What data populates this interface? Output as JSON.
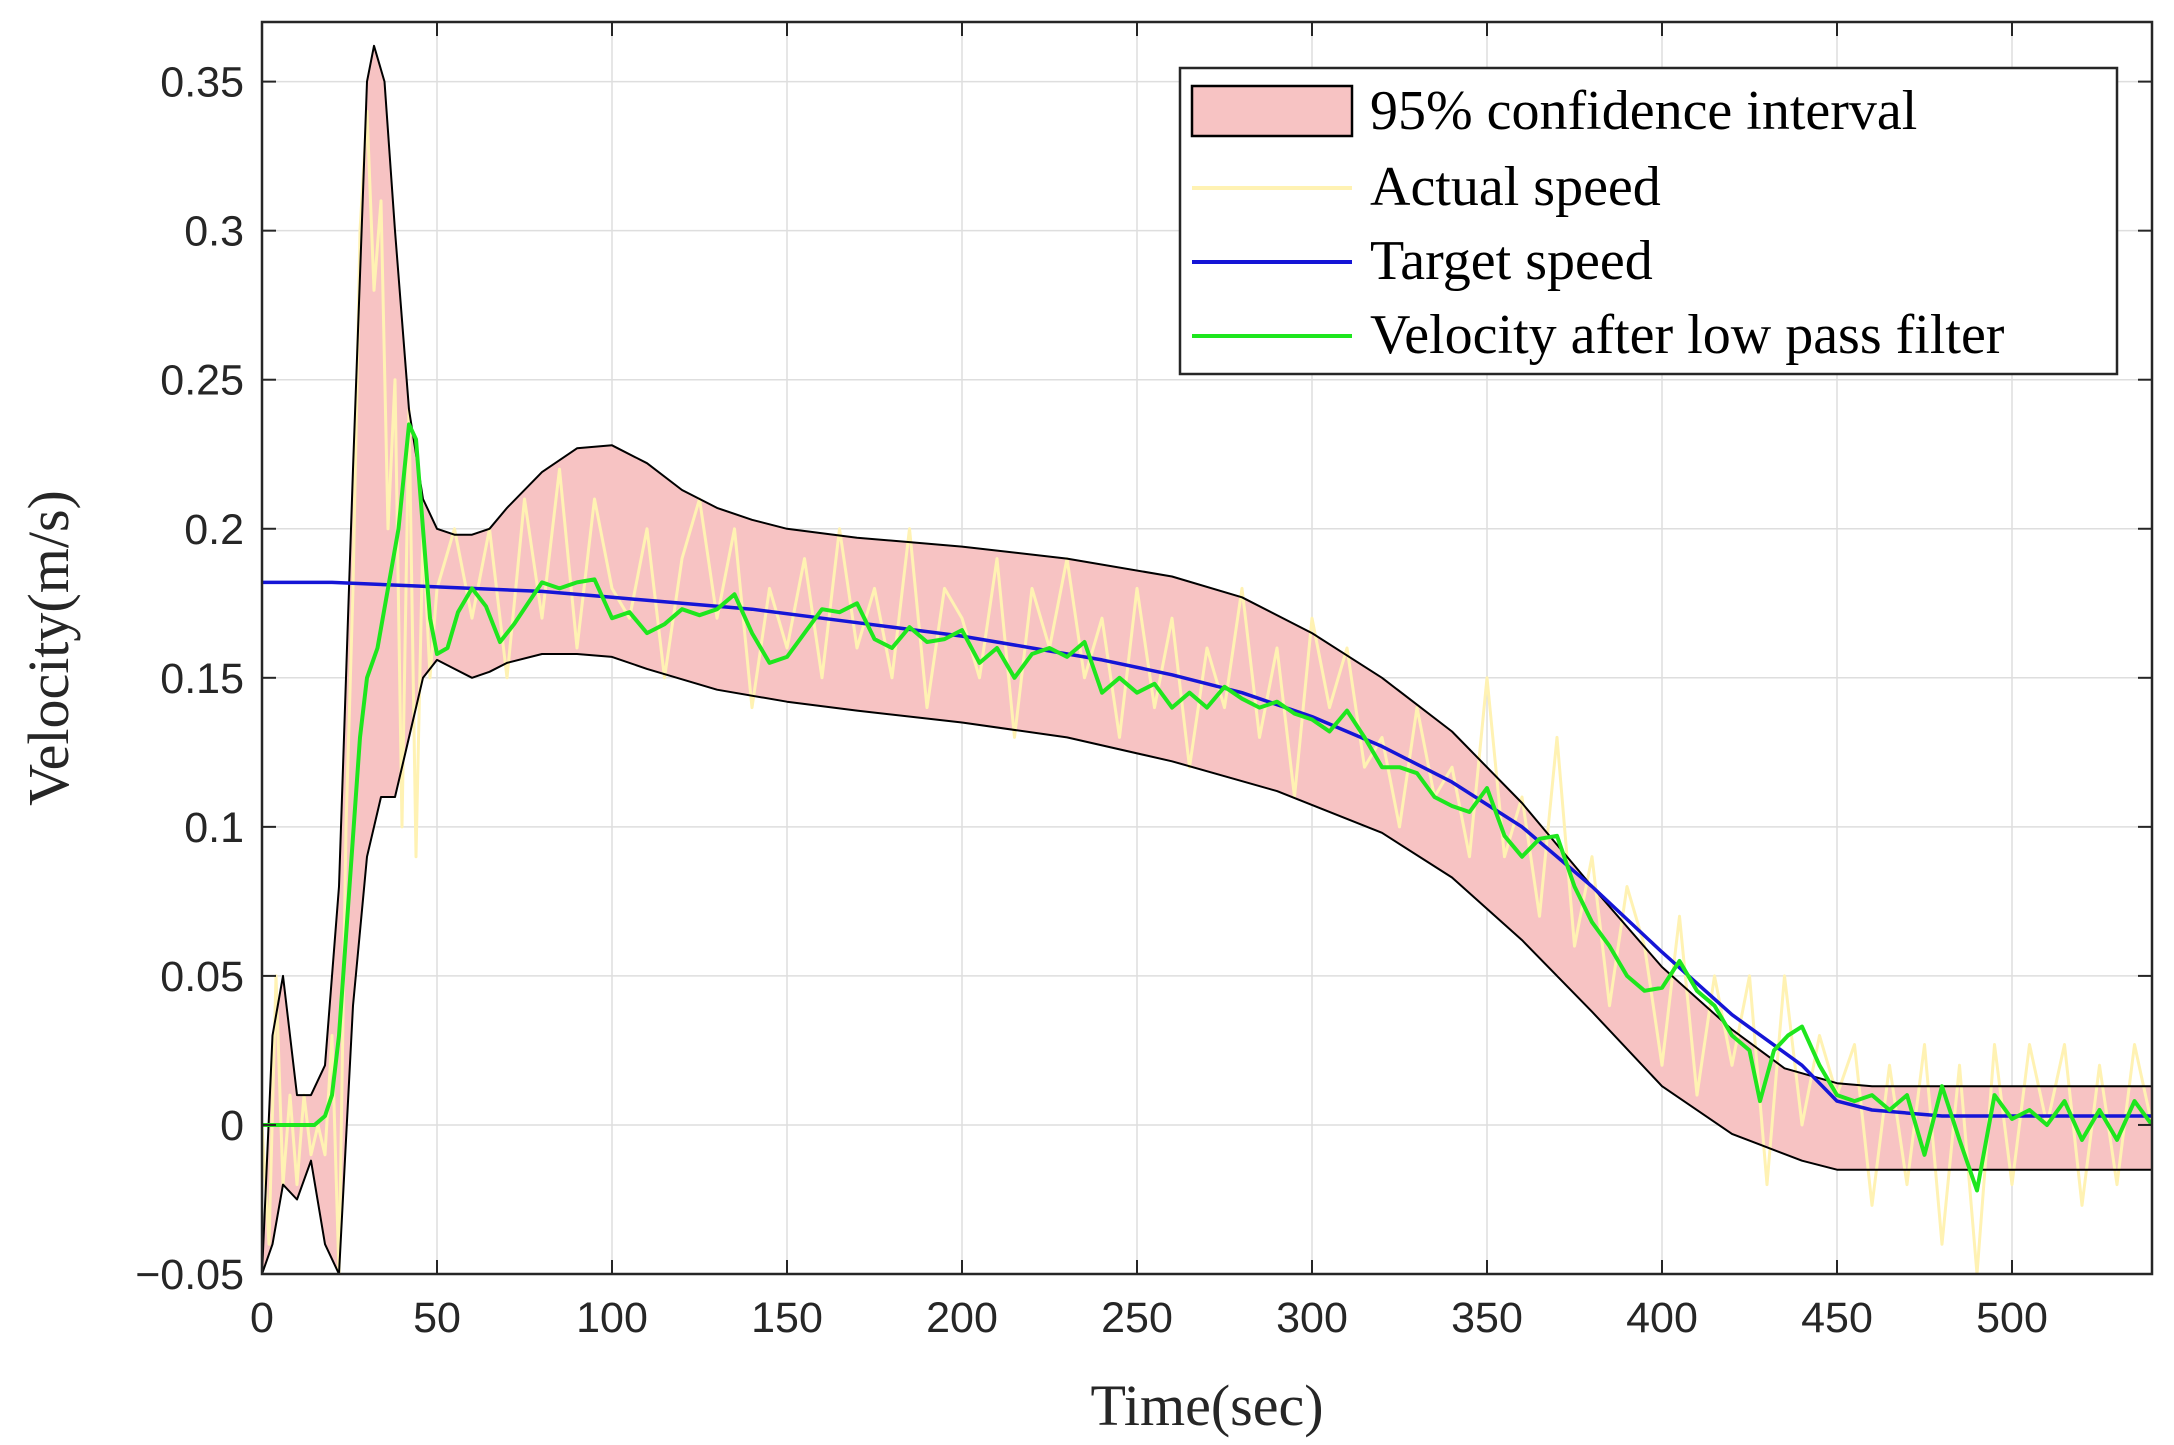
{
  "chart_data": {
    "type": "line",
    "title": "",
    "xlabel": "Time(sec)",
    "ylabel": "Velocity(m/s)",
    "xlim": [
      0,
      540
    ],
    "ylim": [
      -0.05,
      0.37
    ],
    "grid": true,
    "xticks": [
      0,
      50,
      100,
      150,
      200,
      250,
      300,
      350,
      400,
      450,
      500
    ],
    "yticks": [
      -0.05,
      0,
      0.05,
      0.1,
      0.15,
      0.2,
      0.25,
      0.3,
      0.35
    ],
    "xtick_labels": [
      "0",
      "50",
      "100",
      "150",
      "200",
      "250",
      "300",
      "350",
      "400",
      "450",
      "500"
    ],
    "ytick_labels": [
      "−0.05",
      "0",
      "0.05",
      "0.1",
      "0.15",
      "0.2",
      "0.25",
      "0.3",
      "0.35"
    ],
    "legend_position": "top-right",
    "legend": [
      {
        "label": "95% confidence interval",
        "kind": "patch",
        "color": "#f7c3c3",
        "edge": "#000000"
      },
      {
        "label": "Actual speed",
        "kind": "line",
        "color": "#fff2b3"
      },
      {
        "label": "Target speed",
        "kind": "line",
        "color": "#1515d6"
      },
      {
        "label": "Velocity after low pass filter",
        "kind": "line",
        "color": "#1ee61e"
      }
    ],
    "series": [
      {
        "name": "95% confidence interval upper",
        "x": [
          0,
          3,
          6,
          10,
          14,
          18,
          22,
          26,
          30,
          32,
          35,
          38,
          42,
          46,
          50,
          55,
          60,
          65,
          70,
          80,
          90,
          100,
          110,
          120,
          130,
          140,
          150,
          170,
          200,
          230,
          260,
          280,
          300,
          320,
          340,
          360,
          380,
          400,
          420,
          435,
          450,
          460,
          540
        ],
        "values": [
          -0.05,
          0.03,
          0.05,
          0.01,
          0.01,
          0.02,
          0.08,
          0.22,
          0.35,
          0.362,
          0.35,
          0.3,
          0.24,
          0.21,
          0.2,
          0.198,
          0.198,
          0.2,
          0.207,
          0.219,
          0.227,
          0.228,
          0.222,
          0.213,
          0.207,
          0.203,
          0.2,
          0.197,
          0.194,
          0.19,
          0.184,
          0.177,
          0.165,
          0.15,
          0.132,
          0.108,
          0.08,
          0.053,
          0.032,
          0.019,
          0.014,
          0.013,
          0.013
        ]
      },
      {
        "name": "95% confidence interval lower",
        "x": [
          0,
          3,
          6,
          10,
          14,
          18,
          22,
          26,
          30,
          34,
          38,
          42,
          46,
          50,
          55,
          60,
          65,
          70,
          80,
          90,
          100,
          110,
          130,
          150,
          170,
          200,
          230,
          260,
          290,
          320,
          340,
          360,
          380,
          400,
          420,
          440,
          450,
          460,
          540
        ],
        "values": [
          -0.05,
          -0.04,
          -0.02,
          -0.025,
          -0.012,
          -0.04,
          -0.05,
          0.04,
          0.09,
          0.11,
          0.11,
          0.13,
          0.15,
          0.156,
          0.153,
          0.15,
          0.152,
          0.155,
          0.158,
          0.158,
          0.157,
          0.153,
          0.146,
          0.142,
          0.139,
          0.135,
          0.13,
          0.122,
          0.112,
          0.098,
          0.083,
          0.062,
          0.038,
          0.013,
          -0.003,
          -0.012,
          -0.015,
          -0.015,
          -0.015
        ]
      },
      {
        "name": "Actual speed",
        "x": [
          0,
          2,
          4,
          6,
          8,
          10,
          12,
          14,
          16,
          18,
          20,
          22,
          24,
          26,
          28,
          30,
          32,
          34,
          36,
          38,
          40,
          42,
          44,
          46,
          48,
          50,
          55,
          60,
          65,
          70,
          75,
          80,
          85,
          90,
          95,
          100,
          105,
          110,
          115,
          120,
          125,
          130,
          135,
          140,
          145,
          150,
          155,
          160,
          165,
          170,
          175,
          180,
          185,
          190,
          195,
          200,
          205,
          210,
          215,
          220,
          225,
          230,
          235,
          240,
          245,
          250,
          255,
          260,
          265,
          270,
          275,
          280,
          285,
          290,
          295,
          300,
          305,
          310,
          315,
          320,
          325,
          330,
          335,
          340,
          345,
          350,
          355,
          360,
          365,
          370,
          375,
          380,
          385,
          390,
          395,
          400,
          405,
          410,
          415,
          420,
          425,
          430,
          435,
          440,
          445,
          450,
          455,
          460,
          465,
          470,
          475,
          480,
          485,
          490,
          495,
          500,
          505,
          510,
          515,
          520,
          525,
          530,
          535,
          540
        ],
        "values": [
          0.0,
          -0.04,
          0.05,
          -0.02,
          0.01,
          -0.02,
          0.01,
          -0.01,
          0.0,
          -0.01,
          0.03,
          -0.05,
          0.1,
          0.18,
          0.3,
          0.34,
          0.28,
          0.31,
          0.2,
          0.25,
          0.1,
          0.24,
          0.09,
          0.2,
          0.15,
          0.18,
          0.2,
          0.17,
          0.2,
          0.15,
          0.21,
          0.17,
          0.22,
          0.16,
          0.21,
          0.18,
          0.17,
          0.2,
          0.15,
          0.19,
          0.21,
          0.17,
          0.2,
          0.14,
          0.18,
          0.16,
          0.19,
          0.15,
          0.2,
          0.16,
          0.18,
          0.15,
          0.2,
          0.14,
          0.18,
          0.17,
          0.15,
          0.19,
          0.13,
          0.18,
          0.16,
          0.19,
          0.15,
          0.17,
          0.13,
          0.18,
          0.14,
          0.17,
          0.12,
          0.16,
          0.14,
          0.18,
          0.13,
          0.16,
          0.11,
          0.17,
          0.14,
          0.16,
          0.12,
          0.13,
          0.1,
          0.14,
          0.11,
          0.12,
          0.09,
          0.15,
          0.09,
          0.11,
          0.07,
          0.13,
          0.06,
          0.09,
          0.04,
          0.08,
          0.06,
          0.02,
          0.07,
          0.01,
          0.05,
          0.02,
          0.05,
          -0.02,
          0.05,
          0.0,
          0.03,
          0.01,
          0.027,
          -0.027,
          0.02,
          -0.02,
          0.027,
          -0.04,
          0.02,
          -0.05,
          0.027,
          -0.02,
          0.027,
          0.0,
          0.027,
          -0.027,
          0.02,
          -0.02,
          0.027,
          0.0
        ]
      },
      {
        "name": "Target speed",
        "x": [
          0,
          20,
          40,
          60,
          80,
          100,
          120,
          140,
          160,
          180,
          200,
          220,
          240,
          260,
          280,
          300,
          320,
          340,
          360,
          380,
          400,
          420,
          440,
          450,
          460,
          480,
          500,
          520,
          540
        ],
        "values": [
          0.182,
          0.182,
          0.181,
          0.18,
          0.179,
          0.177,
          0.175,
          0.173,
          0.17,
          0.167,
          0.164,
          0.16,
          0.156,
          0.151,
          0.145,
          0.137,
          0.127,
          0.115,
          0.1,
          0.08,
          0.058,
          0.037,
          0.02,
          0.008,
          0.005,
          0.003,
          0.003,
          0.003,
          0.003
        ]
      },
      {
        "name": "Velocity after low pass filter",
        "x": [
          0,
          5,
          10,
          15,
          18,
          20,
          22,
          25,
          28,
          30,
          33,
          36,
          39,
          42,
          44,
          46,
          48,
          50,
          53,
          56,
          60,
          64,
          68,
          72,
          76,
          80,
          85,
          90,
          95,
          100,
          105,
          110,
          115,
          120,
          125,
          130,
          135,
          140,
          145,
          150,
          155,
          160,
          165,
          170,
          175,
          180,
          185,
          190,
          195,
          200,
          205,
          210,
          215,
          220,
          225,
          230,
          235,
          240,
          245,
          250,
          255,
          260,
          265,
          270,
          275,
          280,
          285,
          290,
          295,
          300,
          305,
          310,
          315,
          320,
          325,
          330,
          335,
          340,
          345,
          350,
          355,
          360,
          365,
          370,
          375,
          380,
          385,
          390,
          395,
          400,
          405,
          410,
          415,
          420,
          425,
          428,
          432,
          436,
          440,
          445,
          450,
          455,
          460,
          465,
          470,
          475,
          480,
          485,
          490,
          495,
          500,
          505,
          510,
          515,
          520,
          525,
          530,
          535,
          540
        ],
        "values": [
          0.0,
          0.0,
          0.0,
          0.0,
          0.003,
          0.01,
          0.03,
          0.08,
          0.13,
          0.15,
          0.16,
          0.18,
          0.2,
          0.235,
          0.23,
          0.2,
          0.17,
          0.158,
          0.16,
          0.172,
          0.18,
          0.174,
          0.162,
          0.168,
          0.175,
          0.182,
          0.18,
          0.182,
          0.183,
          0.17,
          0.172,
          0.165,
          0.168,
          0.173,
          0.171,
          0.173,
          0.178,
          0.165,
          0.155,
          0.157,
          0.165,
          0.173,
          0.172,
          0.175,
          0.163,
          0.16,
          0.167,
          0.162,
          0.163,
          0.166,
          0.155,
          0.16,
          0.15,
          0.158,
          0.16,
          0.157,
          0.162,
          0.145,
          0.15,
          0.145,
          0.148,
          0.14,
          0.145,
          0.14,
          0.147,
          0.143,
          0.14,
          0.142,
          0.138,
          0.136,
          0.132,
          0.139,
          0.13,
          0.12,
          0.12,
          0.118,
          0.11,
          0.107,
          0.105,
          0.113,
          0.097,
          0.09,
          0.096,
          0.097,
          0.08,
          0.068,
          0.06,
          0.05,
          0.045,
          0.046,
          0.055,
          0.045,
          0.04,
          0.03,
          0.025,
          0.008,
          0.025,
          0.03,
          0.033,
          0.02,
          0.01,
          0.008,
          0.01,
          0.005,
          0.01,
          -0.01,
          0.013,
          -0.005,
          -0.022,
          0.01,
          0.002,
          0.005,
          0.0,
          0.008,
          -0.005,
          0.005,
          -0.005,
          0.008,
          0.0
        ]
      }
    ]
  }
}
